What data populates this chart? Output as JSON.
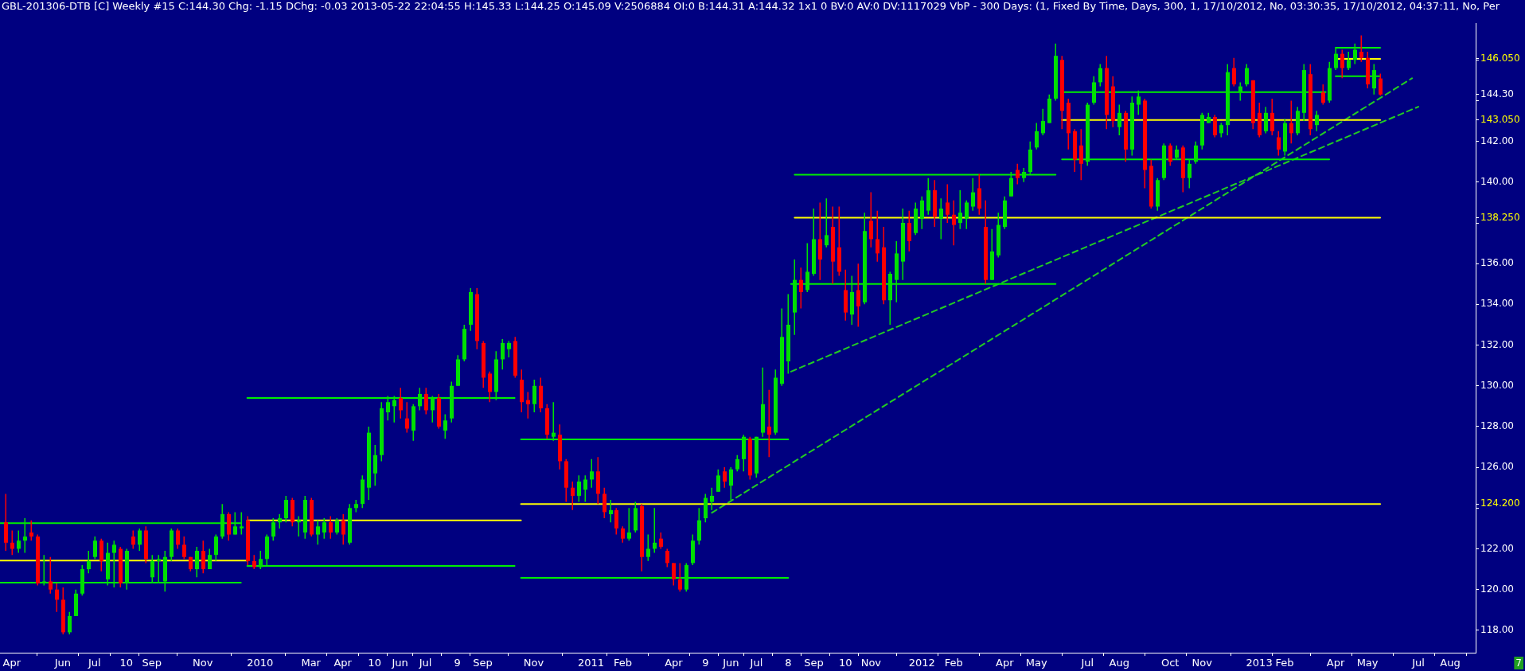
{
  "chart_data": {
    "type": "candlestick",
    "title": "GBL-201306-DTB [C]  Weekly  #15 C:144.30 Chg: -1.15 DChg: -0.03 2013-05-22 22:04:55 H:145.33 L:144.25 O:145.09 V:2506884 OI:0 B:144.31 A:144.32 1x1 0 BV:0 AV:0 DV:1117029  VbP - 300 Days:  (1, Fixed By Time, Days, 300, 1, 17/10/2012, No, 03:30:35, 17/10/2012, 04:37:11, No, Per",
    "x": [
      "2009-03-30",
      "2009-04-06",
      "2009-04-13",
      "2009-04-20",
      "2009-04-27",
      "2009-05-04",
      "2009-05-11",
      "2009-05-18",
      "2009-05-25",
      "2009-06-01",
      "2009-06-08",
      "2009-06-15",
      "2009-06-22",
      "2009-06-29",
      "2009-07-06",
      "2009-07-13",
      "2009-07-20",
      "2009-07-27",
      "2009-08-03",
      "2009-08-10",
      "2009-08-17",
      "2009-08-24",
      "2009-08-31",
      "2009-09-07",
      "2009-09-14",
      "2009-09-21",
      "2009-09-28",
      "2009-10-05",
      "2009-10-12",
      "2009-10-19",
      "2009-10-26",
      "2009-11-02",
      "2009-11-09",
      "2009-11-16",
      "2009-11-23",
      "2009-11-30",
      "2009-12-07",
      "2009-12-14",
      "2009-12-21",
      "2009-12-28",
      "2010-01-04",
      "2010-01-11",
      "2010-01-18",
      "2010-01-25",
      "2010-02-01",
      "2010-02-08",
      "2010-02-15",
      "2010-02-22",
      "2010-03-01",
      "2010-03-08",
      "2010-03-15",
      "2010-03-22",
      "2010-03-29",
      "2010-04-05",
      "2010-04-12",
      "2010-04-19",
      "2010-04-26",
      "2010-05-03",
      "2010-05-10",
      "2010-05-17",
      "2010-05-24",
      "2010-05-31",
      "2010-06-07",
      "2010-06-14",
      "2010-06-21",
      "2010-06-28",
      "2010-07-05",
      "2010-07-12",
      "2010-07-19",
      "2010-07-26",
      "2010-08-02",
      "2010-08-09",
      "2010-08-16",
      "2010-08-23",
      "2010-08-30",
      "2010-09-06",
      "2010-09-13",
      "2010-09-20",
      "2010-09-27",
      "2010-10-04",
      "2010-10-11",
      "2010-10-18",
      "2010-10-25",
      "2010-11-01",
      "2010-11-08",
      "2010-11-15",
      "2010-11-22",
      "2010-11-29",
      "2010-12-06",
      "2010-12-13",
      "2010-12-20",
      "2010-12-27",
      "2011-01-03",
      "2011-01-10",
      "2011-01-17",
      "2011-01-24",
      "2011-01-31",
      "2011-02-07",
      "2011-02-14",
      "2011-02-21",
      "2011-02-28",
      "2011-03-07",
      "2011-03-14",
      "2011-03-21",
      "2011-03-28",
      "2011-04-04",
      "2011-04-11",
      "2011-04-18",
      "2011-04-25",
      "2011-05-02",
      "2011-05-09",
      "2011-05-16",
      "2011-05-23",
      "2011-05-30",
      "2011-06-06",
      "2011-06-13",
      "2011-06-20",
      "2011-06-27",
      "2011-07-04",
      "2011-07-11",
      "2011-07-18",
      "2011-07-25",
      "2011-08-01",
      "2011-08-08",
      "2011-08-15",
      "2011-08-22",
      "2011-08-29",
      "2011-09-05",
      "2011-09-12",
      "2011-09-19",
      "2011-09-26",
      "2011-10-03",
      "2011-10-10",
      "2011-10-17",
      "2011-10-24",
      "2011-10-31",
      "2011-11-07",
      "2011-11-14",
      "2011-11-21",
      "2011-11-28",
      "2011-12-05",
      "2011-12-12",
      "2011-12-19",
      "2011-12-26",
      "2012-01-02",
      "2012-01-09",
      "2012-01-16",
      "2012-01-23",
      "2012-01-30",
      "2012-02-06",
      "2012-02-13",
      "2012-02-20",
      "2012-02-27",
      "2012-03-05",
      "2012-03-12",
      "2012-03-19",
      "2012-03-26",
      "2012-04-02",
      "2012-04-09",
      "2012-04-16",
      "2012-04-23",
      "2012-04-30",
      "2012-05-07",
      "2012-05-14",
      "2012-05-21",
      "2012-05-28",
      "2012-06-04",
      "2012-06-11",
      "2012-06-18",
      "2012-06-25",
      "2012-07-02",
      "2012-07-09",
      "2012-07-16",
      "2012-07-23",
      "2012-07-30",
      "2012-08-06",
      "2012-08-13",
      "2012-08-20",
      "2012-08-27",
      "2012-09-03",
      "2012-09-10",
      "2012-09-17",
      "2012-09-24",
      "2012-10-01",
      "2012-10-08",
      "2012-10-15",
      "2012-10-22",
      "2012-10-29",
      "2012-11-05",
      "2012-11-12",
      "2012-11-19",
      "2012-11-26",
      "2012-12-03",
      "2012-12-10",
      "2012-12-17",
      "2012-12-24",
      "2012-12-31",
      "2013-01-07",
      "2013-01-14",
      "2013-01-21",
      "2013-01-28",
      "2013-02-04",
      "2013-02-11",
      "2013-02-18",
      "2013-02-25",
      "2013-03-04",
      "2013-03-11",
      "2013-03-18",
      "2013-03-25",
      "2013-04-01",
      "2013-04-08",
      "2013-04-15",
      "2013-04-22",
      "2013-04-29",
      "2013-05-06",
      "2013-05-13",
      "2013-05-20"
    ],
    "ohlc": [
      [
        123.3,
        124.7,
        121.9,
        122.3
      ],
      [
        122.3,
        122.9,
        121.7,
        122.0
      ],
      [
        122.0,
        122.9,
        121.8,
        122.4
      ],
      [
        122.4,
        123.5,
        121.8,
        122.6
      ],
      [
        122.8,
        123.4,
        122.4,
        122.6
      ],
      [
        122.6,
        122.7,
        120.2,
        120.3
      ],
      [
        120.3,
        121.7,
        120.2,
        120.4
      ],
      [
        120.4,
        121.6,
        119.8,
        120.0
      ],
      [
        120.0,
        120.3,
        118.9,
        119.5
      ],
      [
        119.5,
        120.1,
        117.8,
        117.9
      ],
      [
        117.9,
        118.9,
        117.8,
        118.7
      ],
      [
        118.7,
        120.0,
        118.7,
        119.8
      ],
      [
        119.8,
        121.2,
        119.7,
        121.0
      ],
      [
        121.0,
        121.9,
        120.8,
        121.4
      ],
      [
        121.6,
        122.6,
        121.5,
        122.4
      ],
      [
        122.4,
        122.5,
        120.9,
        121.4
      ],
      [
        120.5,
        122.3,
        120.2,
        121.8
      ],
      [
        121.8,
        122.4,
        120.1,
        122.2
      ],
      [
        122.0,
        122.1,
        120.1,
        120.3
      ],
      [
        120.3,
        122.0,
        120.0,
        121.9
      ],
      [
        122.6,
        122.9,
        122.0,
        122.2
      ],
      [
        122.2,
        123.0,
        121.9,
        122.9
      ],
      [
        122.9,
        123.1,
        121.3,
        121.5
      ],
      [
        120.6,
        121.7,
        120.3,
        121.4
      ],
      [
        121.4,
        121.7,
        120.3,
        121.5
      ],
      [
        120.4,
        121.9,
        119.9,
        121.6
      ],
      [
        121.6,
        123.0,
        121.4,
        122.9
      ],
      [
        122.9,
        123.0,
        122.0,
        122.2
      ],
      [
        122.2,
        122.6,
        121.5,
        121.6
      ],
      [
        121.6,
        121.6,
        120.9,
        121.0
      ],
      [
        121.0,
        122.1,
        120.6,
        121.9
      ],
      [
        121.9,
        122.4,
        120.8,
        121.0
      ],
      [
        121.0,
        122.0,
        121.0,
        121.7
      ],
      [
        121.7,
        122.7,
        121.4,
        122.6
      ],
      [
        122.6,
        124.2,
        122.5,
        123.7
      ],
      [
        123.7,
        123.8,
        122.4,
        122.7
      ],
      [
        122.7,
        123.8,
        122.7,
        123.1
      ],
      [
        123.0,
        123.8,
        122.7,
        123.1
      ],
      [
        123.4,
        123.6,
        121.2,
        121.4
      ],
      [
        121.4,
        121.7,
        121.0,
        121.1
      ],
      [
        121.1,
        121.9,
        121.0,
        121.5
      ],
      [
        121.5,
        122.7,
        121.2,
        122.6
      ],
      [
        122.6,
        123.5,
        122.4,
        123.3
      ],
      [
        123.3,
        123.7,
        123.0,
        123.5
      ],
      [
        123.5,
        124.6,
        123.3,
        124.4
      ],
      [
        124.4,
        124.5,
        123.1,
        123.3
      ],
      [
        123.3,
        123.6,
        122.6,
        123.4
      ],
      [
        122.8,
        124.6,
        122.5,
        124.4
      ],
      [
        124.4,
        124.5,
        122.6,
        122.7
      ],
      [
        122.7,
        123.4,
        122.2,
        123.1
      ],
      [
        122.8,
        123.5,
        122.5,
        123.3
      ],
      [
        123.3,
        123.6,
        122.5,
        122.8
      ],
      [
        122.8,
        123.5,
        122.7,
        123.4
      ],
      [
        123.4,
        123.7,
        122.2,
        122.7
      ],
      [
        122.3,
        124.2,
        122.2,
        124.0
      ],
      [
        124.0,
        124.4,
        123.8,
        124.2
      ],
      [
        124.2,
        125.6,
        124.0,
        125.4
      ],
      [
        125.0,
        128.0,
        124.4,
        127.7
      ],
      [
        125.7,
        127.1,
        125.1,
        126.6
      ],
      [
        126.6,
        129.2,
        126.3,
        128.9
      ],
      [
        128.7,
        129.5,
        128.3,
        129.2
      ],
      [
        129.0,
        129.5,
        128.2,
        129.3
      ],
      [
        129.4,
        129.9,
        128.4,
        128.8
      ],
      [
        128.4,
        129.2,
        127.7,
        127.9
      ],
      [
        127.8,
        129.1,
        127.3,
        129.0
      ],
      [
        129.0,
        129.9,
        128.8,
        129.6
      ],
      [
        129.6,
        129.9,
        128.6,
        128.8
      ],
      [
        128.8,
        129.5,
        128.2,
        129.4
      ],
      [
        129.4,
        129.6,
        127.9,
        128.0
      ],
      [
        127.8,
        128.6,
        127.4,
        128.3
      ],
      [
        128.4,
        130.2,
        128.2,
        130.0
      ],
      [
        130.0,
        131.5,
        130.0,
        131.3
      ],
      [
        131.3,
        133.0,
        131.2,
        132.8
      ],
      [
        133.0,
        134.8,
        132.7,
        134.6
      ],
      [
        134.5,
        134.8,
        131.8,
        132.2
      ],
      [
        132.1,
        132.2,
        129.9,
        130.4
      ],
      [
        130.6,
        130.7,
        129.2,
        129.7
      ],
      [
        129.7,
        131.7,
        129.3,
        131.3
      ],
      [
        131.3,
        132.3,
        130.8,
        132.1
      ],
      [
        131.8,
        132.2,
        131.4,
        132.1
      ],
      [
        132.2,
        132.4,
        130.4,
        130.5
      ],
      [
        130.3,
        130.8,
        128.7,
        129.2
      ],
      [
        129.3,
        129.7,
        128.4,
        129.1
      ],
      [
        129.1,
        130.3,
        128.7,
        130.0
      ],
      [
        130.0,
        130.4,
        128.7,
        128.9
      ],
      [
        128.9,
        129.1,
        127.4,
        127.6
      ],
      [
        127.5,
        129.2,
        127.3,
        127.7
      ],
      [
        127.6,
        128.1,
        125.9,
        126.3
      ],
      [
        126.3,
        126.4,
        124.3,
        125.0
      ],
      [
        125.0,
        125.3,
        123.9,
        124.6
      ],
      [
        124.6,
        125.6,
        124.3,
        125.3
      ],
      [
        124.9,
        125.6,
        124.3,
        125.4
      ],
      [
        125.4,
        126.4,
        125.0,
        125.8
      ],
      [
        125.8,
        126.5,
        124.2,
        124.7
      ],
      [
        124.7,
        125.0,
        123.5,
        123.8
      ],
      [
        123.7,
        124.4,
        123.3,
        123.9
      ],
      [
        123.9,
        124.0,
        122.7,
        123.0
      ],
      [
        123.0,
        123.1,
        122.3,
        122.5
      ],
      [
        122.5,
        124.0,
        122.4,
        122.8
      ],
      [
        122.9,
        124.3,
        122.8,
        124.0
      ],
      [
        124.1,
        124.2,
        120.9,
        121.6
      ],
      [
        121.6,
        122.7,
        121.4,
        122.0
      ],
      [
        122.0,
        124.0,
        121.8,
        122.3
      ],
      [
        122.5,
        122.8,
        122.0,
        122.1
      ],
      [
        121.9,
        122.0,
        121.1,
        121.3
      ],
      [
        121.3,
        121.3,
        120.2,
        120.5
      ],
      [
        120.5,
        121.3,
        119.9,
        120.0
      ],
      [
        120.0,
        121.3,
        119.9,
        121.2
      ],
      [
        121.3,
        122.7,
        121.2,
        122.4
      ],
      [
        122.4,
        124.0,
        122.2,
        123.4
      ],
      [
        123.5,
        124.7,
        123.3,
        124.5
      ],
      [
        124.3,
        125.0,
        123.9,
        124.6
      ],
      [
        124.8,
        125.9,
        124.8,
        125.6
      ],
      [
        125.8,
        126.0,
        125.0,
        125.3
      ],
      [
        125.1,
        126.0,
        124.4,
        125.9
      ],
      [
        125.9,
        126.6,
        125.8,
        126.4
      ],
      [
        126.4,
        127.6,
        125.8,
        127.5
      ],
      [
        127.4,
        127.5,
        125.4,
        125.6
      ],
      [
        125.7,
        127.5,
        125.5,
        127.5
      ],
      [
        127.7,
        130.9,
        127.5,
        129.1
      ],
      [
        128.0,
        129.8,
        126.5,
        127.6
      ],
      [
        127.7,
        130.8,
        127.6,
        130.4
      ],
      [
        130.1,
        133.8,
        130.0,
        132.4
      ],
      [
        131.2,
        134.5,
        130.6,
        133.0
      ],
      [
        133.6,
        136.2,
        132.5,
        135.2
      ],
      [
        135.2,
        135.8,
        133.8,
        134.6
      ],
      [
        134.7,
        137.0,
        134.6,
        135.6
      ],
      [
        135.5,
        138.7,
        135.4,
        137.2
      ],
      [
        137.2,
        139.0,
        135.2,
        136.2
      ],
      [
        136.9,
        139.2,
        136.8,
        137.4
      ],
      [
        137.8,
        138.8,
        135.0,
        136.1
      ],
      [
        136.8,
        138.8,
        135.4,
        135.6
      ],
      [
        134.7,
        135.7,
        133.2,
        133.6
      ],
      [
        133.5,
        135.4,
        133.0,
        134.6
      ],
      [
        134.7,
        136.0,
        132.9,
        133.9
      ],
      [
        134.1,
        138.5,
        134.0,
        137.6
      ],
      [
        138.1,
        139.5,
        136.8,
        137.2
      ],
      [
        137.2,
        138.6,
        136.1,
        136.5
      ],
      [
        136.8,
        137.8,
        134.0,
        134.2
      ],
      [
        134.2,
        135.6,
        133.0,
        135.5
      ],
      [
        135.2,
        137.1,
        134.1,
        136.5
      ],
      [
        136.1,
        138.7,
        135.2,
        138.0
      ],
      [
        138.0,
        138.6,
        136.6,
        137.1
      ],
      [
        137.5,
        139.0,
        137.4,
        138.7
      ],
      [
        138.2,
        139.3,
        137.7,
        139.1
      ],
      [
        138.6,
        140.2,
        138.4,
        139.6
      ],
      [
        139.6,
        140.1,
        137.8,
        138.3
      ],
      [
        138.2,
        139.2,
        137.2,
        138.7
      ],
      [
        139.0,
        139.9,
        138.0,
        138.4
      ],
      [
        138.4,
        139.1,
        136.9,
        137.9
      ],
      [
        138.0,
        139.6,
        137.7,
        138.5
      ],
      [
        138.2,
        139.1,
        137.7,
        139.0
      ],
      [
        138.8,
        140.2,
        138.6,
        139.5
      ],
      [
        139.7,
        140.4,
        138.4,
        138.7
      ],
      [
        137.8,
        139.1,
        135.0,
        135.2
      ],
      [
        135.2,
        137.7,
        135.2,
        136.6
      ],
      [
        136.4,
        138.5,
        136.3,
        137.9
      ],
      [
        137.8,
        139.3,
        137.7,
        139.1
      ],
      [
        139.3,
        140.5,
        139.3,
        140.2
      ],
      [
        140.6,
        140.9,
        139.9,
        140.2
      ],
      [
        140.2,
        140.7,
        140.0,
        140.5
      ],
      [
        140.5,
        142.0,
        140.4,
        141.6
      ],
      [
        141.7,
        142.9,
        141.6,
        142.5
      ],
      [
        142.4,
        143.6,
        142.3,
        143.0
      ],
      [
        142.9,
        144.3,
        142.9,
        144.1
      ],
      [
        144.1,
        146.8,
        144.0,
        146.2
      ],
      [
        146.0,
        146.2,
        142.6,
        143.5
      ],
      [
        143.9,
        144.1,
        141.6,
        142.4
      ],
      [
        142.5,
        142.6,
        140.5,
        141.1
      ],
      [
        141.8,
        142.6,
        140.1,
        140.9
      ],
      [
        141.0,
        143.9,
        140.8,
        143.8
      ],
      [
        143.9,
        145.2,
        143.8,
        144.9
      ],
      [
        144.9,
        145.8,
        144.7,
        145.6
      ],
      [
        145.6,
        146.2,
        142.6,
        143.3
      ],
      [
        144.7,
        145.2,
        142.7,
        143.0
      ],
      [
        142.7,
        143.8,
        142.3,
        143.4
      ],
      [
        143.4,
        143.5,
        141.0,
        141.6
      ],
      [
        141.6,
        144.2,
        141.3,
        143.9
      ],
      [
        143.8,
        144.5,
        143.3,
        144.2
      ],
      [
        144.0,
        144.1,
        139.7,
        140.6
      ],
      [
        140.8,
        141.1,
        138.7,
        138.8
      ],
      [
        138.8,
        140.2,
        138.6,
        140.1
      ],
      [
        140.2,
        141.9,
        140.1,
        141.8
      ],
      [
        141.8,
        141.9,
        140.8,
        141.0
      ],
      [
        141.2,
        141.8,
        141.1,
        141.6
      ],
      [
        141.7,
        141.8,
        139.5,
        140.2
      ],
      [
        140.2,
        141.1,
        139.7,
        140.9
      ],
      [
        141.0,
        142.0,
        140.9,
        141.8
      ],
      [
        141.8,
        143.4,
        141.6,
        143.3
      ],
      [
        142.9,
        143.4,
        142.9,
        143.2
      ],
      [
        143.2,
        143.3,
        142.2,
        142.3
      ],
      [
        142.4,
        142.9,
        142.2,
        142.8
      ],
      [
        142.8,
        145.8,
        142.3,
        145.4
      ],
      [
        145.6,
        146.1,
        144.7,
        144.8
      ],
      [
        144.4,
        144.9,
        144.0,
        144.7
      ],
      [
        144.8,
        145.8,
        144.7,
        145.6
      ],
      [
        145.0,
        145.0,
        142.6,
        142.9
      ],
      [
        143.4,
        143.9,
        142.2,
        142.3
      ],
      [
        142.5,
        143.7,
        142.4,
        143.4
      ],
      [
        143.4,
        144.1,
        142.3,
        142.5
      ],
      [
        142.2,
        142.5,
        141.3,
        141.6
      ],
      [
        141.5,
        143.1,
        141.3,
        142.9
      ],
      [
        142.9,
        144.0,
        141.9,
        142.4
      ],
      [
        142.4,
        143.7,
        142.3,
        143.5
      ],
      [
        143.4,
        145.8,
        143.0,
        145.5
      ],
      [
        145.3,
        145.8,
        142.3,
        142.6
      ],
      [
        142.8,
        143.5,
        142.5,
        143.3
      ],
      [
        144.4,
        144.8,
        143.8,
        143.9
      ],
      [
        144.0,
        145.9,
        143.9,
        145.6
      ],
      [
        145.6,
        146.6,
        145.5,
        146.3
      ],
      [
        146.3,
        146.5,
        145.1,
        145.6
      ],
      [
        145.6,
        146.4,
        145.5,
        146.0
      ],
      [
        146.0,
        146.8,
        145.8,
        146.5
      ],
      [
        146.4,
        147.2,
        145.9,
        146.1
      ],
      [
        146.1,
        146.4,
        144.6,
        144.8
      ],
      [
        144.6,
        145.8,
        144.3,
        145.5
      ],
      [
        145.09,
        145.33,
        144.25,
        144.3
      ]
    ],
    "series": [
      {
        "type": "line",
        "x": [
          "2009-03-24",
          "2009-12-14"
        ],
        "values": [
          123.26,
          123.26
        ],
        "color": "#00ee00"
      },
      {
        "type": "line",
        "x": [
          "2009-03-24",
          "2009-12-21"
        ],
        "values": [
          121.42,
          121.42
        ],
        "color": "#ffff00"
      },
      {
        "type": "line",
        "x": [
          "2009-03-24",
          "2009-12-14"
        ],
        "values": [
          120.34,
          120.34
        ],
        "color": "#00ee00"
      },
      {
        "type": "line",
        "x": [
          "2009-12-21",
          "2010-10-11"
        ],
        "values": [
          129.4,
          129.4
        ],
        "color": "#00ee00"
      },
      {
        "type": "line",
        "x": [
          "2009-12-21",
          "2010-10-18"
        ],
        "values": [
          123.4,
          123.4
        ],
        "color": "#ffff00"
      },
      {
        "type": "line",
        "x": [
          "2009-12-21",
          "2010-10-11"
        ],
        "values": [
          121.16,
          121.16
        ],
        "color": "#00ee00"
      },
      {
        "type": "line",
        "x": [
          "2010-10-18",
          "2011-08-08"
        ],
        "values": [
          127.37,
          127.37
        ],
        "color": "#00ee00"
      },
      {
        "type": "line",
        "x": [
          "2010-10-18",
          "2013-05-20"
        ],
        "values": [
          124.2,
          124.2
        ],
        "color": "#ffff00"
      },
      {
        "type": "line",
        "x": [
          "2010-10-18",
          "2011-08-08"
        ],
        "values": [
          120.57,
          120.57
        ],
        "color": "#00ee00"
      },
      {
        "type": "line",
        "x": [
          "2011-08-15",
          "2012-05-28"
        ],
        "values": [
          140.36,
          140.36
        ],
        "color": "#00ee00"
      },
      {
        "type": "line",
        "x": [
          "2011-08-15",
          "2013-05-20"
        ],
        "values": [
          138.25,
          138.25
        ],
        "color": "#ffff00"
      },
      {
        "type": "line",
        "x": [
          "2011-08-11",
          "2012-05-28"
        ],
        "values": [
          135.0,
          135.0
        ],
        "color": "#00ee00"
      },
      {
        "type": "line",
        "x": [
          "2012-06-04",
          "2013-03-21"
        ],
        "values": [
          144.42,
          144.42
        ],
        "color": "#00ee00"
      },
      {
        "type": "line",
        "x": [
          "2012-06-04",
          "2013-05-20"
        ],
        "values": [
          143.05,
          143.05
        ],
        "color": "#ffff00"
      },
      {
        "type": "line",
        "x": [
          "2012-06-04",
          "2013-03-25"
        ],
        "values": [
          141.12,
          141.12
        ],
        "color": "#00ee00"
      },
      {
        "type": "line",
        "x": [
          "2013-04-01",
          "2013-05-20"
        ],
        "values": [
          146.6,
          146.6
        ],
        "color": "#00ee00"
      },
      {
        "type": "line",
        "x": [
          "2013-04-01",
          "2013-05-20"
        ],
        "values": [
          146.05,
          146.05
        ],
        "color": "#ffff00"
      },
      {
        "type": "line",
        "x": [
          "2013-04-01",
          "2013-05-20"
        ],
        "values": [
          145.2,
          145.2
        ],
        "color": "#00ee00"
      },
      {
        "type": "line",
        "x": [
          "2011-05-16",
          "2013-06-24"
        ],
        "values": [
          123.77,
          145.1
        ],
        "color": "#22cc22",
        "line_style": "dashed"
      },
      {
        "type": "line",
        "x": [
          "2011-08-11",
          "2013-07-01"
        ],
        "values": [
          130.7,
          143.7
        ],
        "color": "#22cc22",
        "line_style": "dashed"
      }
    ],
    "xlim": [
      "2009-03-24",
      "2013-09-02"
    ],
    "ylim": [
      116.9,
      147.8
    ],
    "xticks": [
      {
        "value": "2009-04-06",
        "label": "Apr"
      },
      {
        "value": "2009-06-01",
        "label": "Jun"
      },
      {
        "value": "2009-07-06",
        "label": "Jul"
      },
      {
        "value": "2009-08-10",
        "label": "10"
      },
      {
        "value": "2009-09-07",
        "label": "Sep"
      },
      {
        "value": "2009-11-02",
        "label": "Nov"
      },
      {
        "value": "2010-01-04",
        "label": "2010"
      },
      {
        "value": "2010-03-01",
        "label": "Mar"
      },
      {
        "value": "2010-04-05",
        "label": "Apr"
      },
      {
        "value": "2010-05-10",
        "label": "10"
      },
      {
        "value": "2010-06-07",
        "label": "Jun"
      },
      {
        "value": "2010-07-05",
        "label": "Jul"
      },
      {
        "value": "2010-08-09",
        "label": "9"
      },
      {
        "value": "2010-09-06",
        "label": "Sep"
      },
      {
        "value": "2010-11-01",
        "label": "Nov"
      },
      {
        "value": "2011-01-03",
        "label": "2011"
      },
      {
        "value": "2011-02-07",
        "label": "Feb"
      },
      {
        "value": "2011-04-04",
        "label": "Apr"
      },
      {
        "value": "2011-05-09",
        "label": "9"
      },
      {
        "value": "2011-06-06",
        "label": "Jun"
      },
      {
        "value": "2011-07-04",
        "label": "Jul"
      },
      {
        "value": "2011-08-08",
        "label": "8"
      },
      {
        "value": "2011-09-05",
        "label": "Sep"
      },
      {
        "value": "2011-10-10",
        "label": "10"
      },
      {
        "value": "2011-11-07",
        "label": "Nov"
      },
      {
        "value": "2012-01-02",
        "label": "2012"
      },
      {
        "value": "2012-02-06",
        "label": "Feb"
      },
      {
        "value": "2012-04-02",
        "label": "Apr"
      },
      {
        "value": "2012-05-07",
        "label": "May"
      },
      {
        "value": "2012-07-02",
        "label": "Jul"
      },
      {
        "value": "2012-08-06",
        "label": "Aug"
      },
      {
        "value": "2012-10-01",
        "label": "Oct"
      },
      {
        "value": "2012-11-05",
        "label": "Nov"
      },
      {
        "value": "2013-01-07",
        "label": "2013"
      },
      {
        "value": "2013-02-04",
        "label": "Feb"
      },
      {
        "value": "2013-04-01",
        "label": "Apr"
      },
      {
        "value": "2013-05-06",
        "label": "May"
      },
      {
        "value": "2013-07-01",
        "label": "Jul"
      },
      {
        "value": "2013-08-05",
        "label": "Aug"
      }
    ],
    "yticks": [
      {
        "value": 118,
        "label": "118.00"
      },
      {
        "value": 120,
        "label": "120.00"
      },
      {
        "value": 122,
        "label": "122.00"
      },
      {
        "value": 124,
        "label": null
      },
      {
        "value": 124.2,
        "label": "124.200"
      },
      {
        "value": 126,
        "label": "126.00"
      },
      {
        "value": 128,
        "label": "128.00"
      },
      {
        "value": 130,
        "label": "130.00"
      },
      {
        "value": 132,
        "label": "132.00"
      },
      {
        "value": 134,
        "label": "134.00"
      },
      {
        "value": 136,
        "label": "136.00"
      },
      {
        "value": 138,
        "label": null
      },
      {
        "value": 138.25,
        "label": "138.250"
      },
      {
        "value": 140,
        "label": "140.00"
      },
      {
        "value": 142,
        "label": "142.00"
      },
      {
        "value": 143.05,
        "label": "143.050"
      },
      {
        "value": 144,
        "label": null
      },
      {
        "value": 144.3,
        "label": "144.30"
      },
      {
        "value": 146,
        "label": null
      },
      {
        "value": 146.05,
        "label": "146.050"
      }
    ],
    "annotations": [
      "7"
    ],
    "grid": false,
    "legend": false
  }
}
